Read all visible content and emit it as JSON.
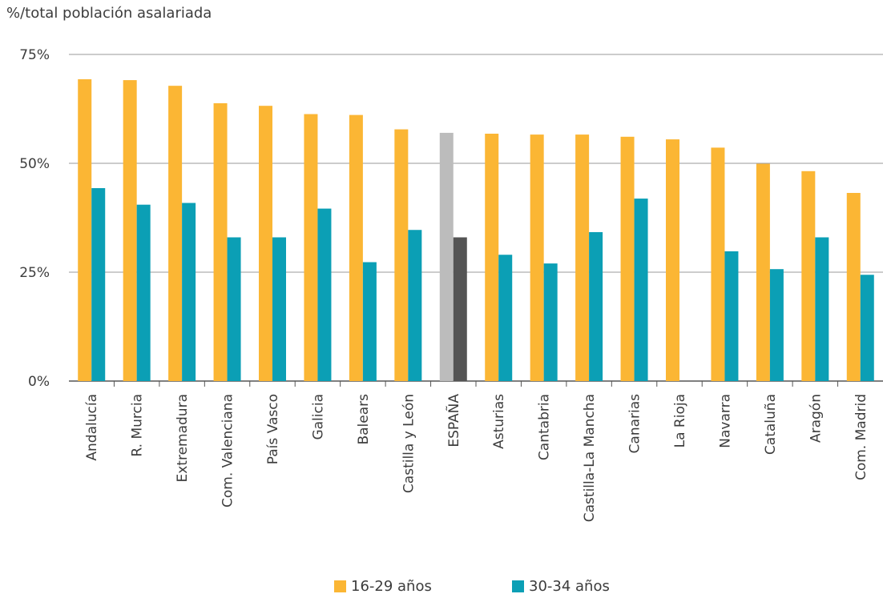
{
  "chart_data": {
    "type": "bar",
    "title": "",
    "ylabel": "%/total población asalariada",
    "xlabel": "",
    "ylim": [
      0,
      75
    ],
    "y_ticks": [
      "0%",
      "25%",
      "50%",
      "75%"
    ],
    "grid": true,
    "legend_position": "bottom-center",
    "categories": [
      "Andalucía",
      "R. Murcia",
      "Extremadura",
      "Com. Valenciana",
      "País Vasco",
      "Galicia",
      "Balears",
      "Castilla y León",
      "ESPAÑA",
      "Asturias",
      "Cantabria",
      "Castilla-La Mancha",
      "Canarias",
      "La Rioja",
      "Navarra",
      "Cataluña",
      "Aragón",
      "Com. Madrid"
    ],
    "highlight_category": "ESPAÑA",
    "series": [
      {
        "name": "16-29 años",
        "color": "#fbb634",
        "highlight_color": "#bcbcbc",
        "values": [
          69.3,
          69.1,
          67.8,
          63.8,
          63.2,
          61.3,
          61.1,
          57.8,
          57.0,
          56.8,
          56.6,
          56.6,
          56.1,
          55.5,
          53.6,
          49.9,
          48.2,
          43.2
        ]
      },
      {
        "name": "30-34 años",
        "color": "#0b9fb5",
        "highlight_color": "#545454",
        "values": [
          44.3,
          40.5,
          40.9,
          33.0,
          33.0,
          39.6,
          27.3,
          34.7,
          33.0,
          29.0,
          27.0,
          34.2,
          41.9,
          null,
          29.8,
          25.7,
          33.0,
          24.4
        ]
      }
    ]
  }
}
